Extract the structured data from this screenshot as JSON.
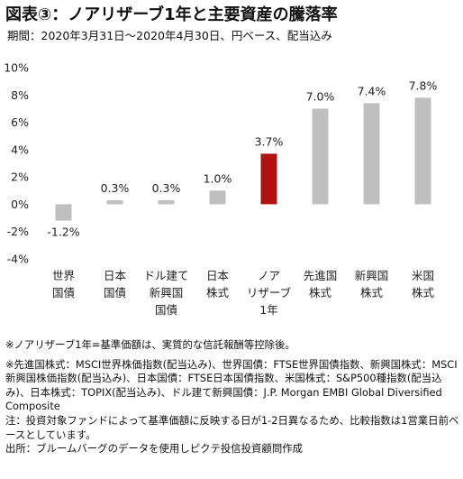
{
  "header": {
    "title": "図表③：ノアリザーブ1年と主要資産の騰落率",
    "subtitle": "期間：2020年3月31日～2020年4月30日、円ベース、配当込み"
  },
  "chart_data": {
    "type": "bar",
    "categories": [
      [
        "世界",
        "国債"
      ],
      [
        "日本",
        "国債"
      ],
      [
        "ドル建て",
        "新興国",
        "国債"
      ],
      [
        "日本",
        "株式"
      ],
      [
        "ノア",
        "リザーブ",
        "1年"
      ],
      [
        "先進国",
        "株式"
      ],
      [
        "新興国",
        "株式"
      ],
      [
        "米国",
        "株式"
      ]
    ],
    "values": [
      -1.2,
      0.3,
      0.3,
      1.0,
      3.7,
      7.0,
      7.4,
      7.8
    ],
    "value_labels": [
      "-1.2%",
      "0.3%",
      "0.3%",
      "1.0%",
      "3.7%",
      "7.0%",
      "7.4%",
      "7.8%"
    ],
    "ylim": [
      -4,
      10
    ],
    "yticks": [
      -4,
      -2,
      0,
      2,
      4,
      6,
      8,
      10
    ],
    "ytick_labels": [
      "-4%",
      "-2%",
      "0%",
      "2%",
      "4%",
      "6%",
      "8%",
      "10%"
    ],
    "highlight_index": 4,
    "bar_color": "#bfbfbf",
    "highlight_color": "#b01111",
    "grid": false,
    "legend": "none"
  },
  "notes": {
    "note1": "※ノアリザーブ1年=基準価額は、実質的な信託報酬等控除後。",
    "note2": "※先進国株式：MSCI世界株価指数(配当込み)、世界国債：FTSE世界国債指数、新興国株式：MSCI新興国株価指数(配当込み)、日本国債：FTSE日本国債指数、米国株式：S&P500種指数(配当込み)、日本株式：TOPIX(配当込み)、ドル建て新興国債：J.P. Morgan EMBI Global Diversified Composite",
    "note3": "注：投資対象ファンドによって基準価額に反映する日が1-2日異なるため、比較指数は1営業日前ベースとしています。",
    "note4": "出所：ブルームバーグのデータを使用しピクテ投信投資顧問作成"
  }
}
